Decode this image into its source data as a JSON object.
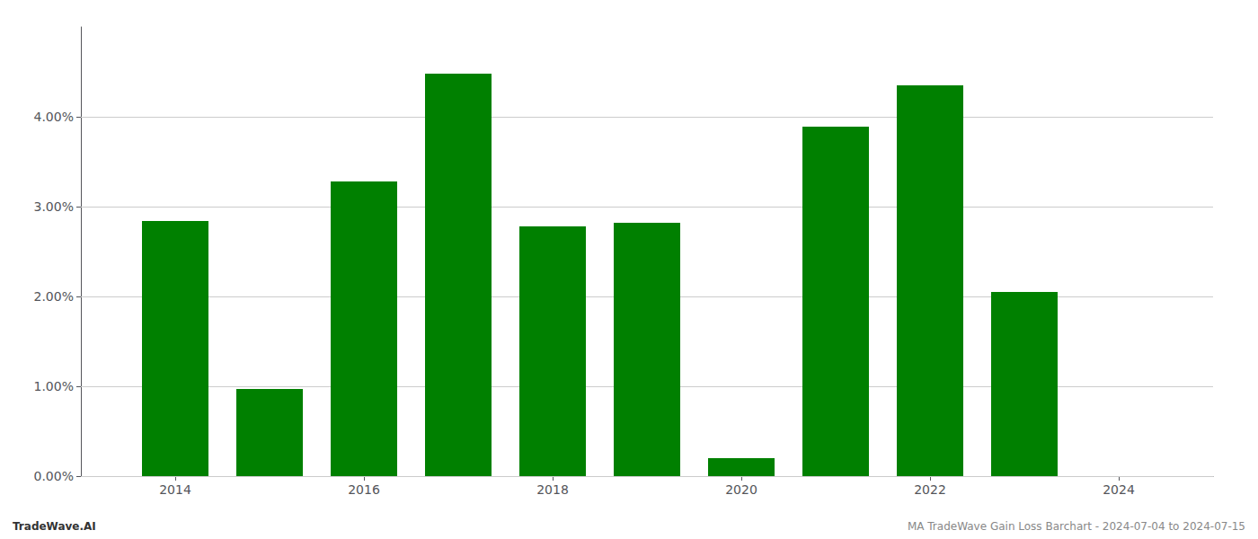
{
  "chart_data": {
    "type": "bar",
    "x": [
      2014,
      2015,
      2016,
      2017,
      2018,
      2019,
      2020,
      2021,
      2022,
      2023,
      2024
    ],
    "values": [
      0.0284,
      0.0097,
      0.0328,
      0.0448,
      0.0278,
      0.0282,
      0.002,
      0.0389,
      0.0435,
      0.0205,
      0.0
    ],
    "color": "#008000",
    "xlim": [
      2013.0,
      2025.0
    ],
    "xticks": [
      2014,
      2016,
      2018,
      2020,
      2022,
      2024
    ],
    "ylim": [
      0,
      0.05
    ],
    "yticks": [
      {
        "value": 0.0,
        "label": "0.00%"
      },
      {
        "value": 0.01,
        "label": "1.00%"
      },
      {
        "value": 0.02,
        "label": "2.00%"
      },
      {
        "value": 0.03,
        "label": "3.00%"
      },
      {
        "value": 0.04,
        "label": "4.00%"
      }
    ],
    "grid": true,
    "annotations": [
      "TradeWave.AI",
      "MA TradeWave Gain Loss Barchart - 2024-07-04 to 2024-07-15"
    ]
  }
}
